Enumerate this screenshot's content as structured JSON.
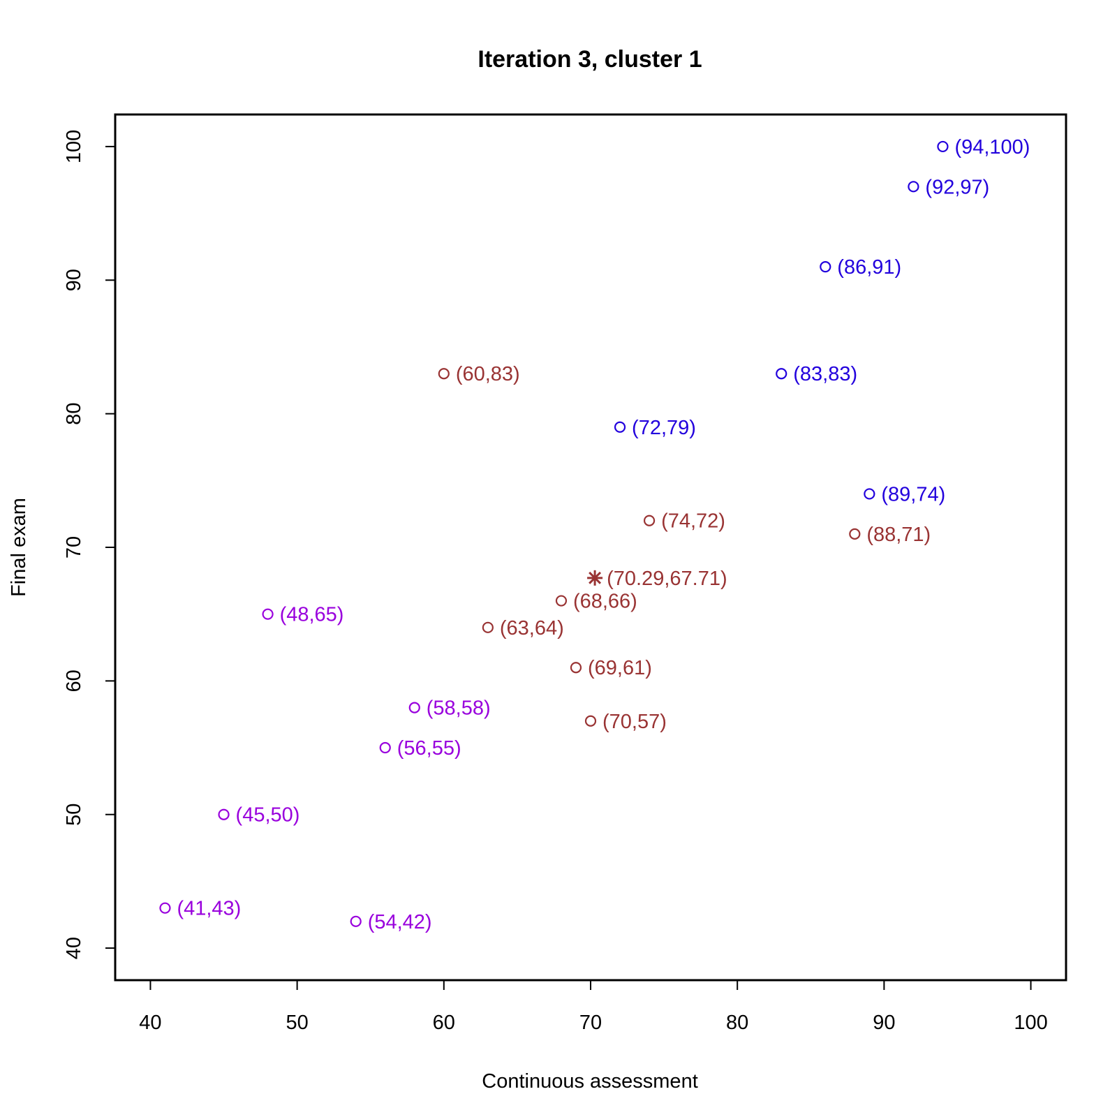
{
  "chart_data": {
    "type": "scatter",
    "title": "Iteration 3, cluster 1",
    "xlabel": "Continuous assessment",
    "ylabel": "Final exam",
    "xlim": [
      37.6,
      102.4
    ],
    "ylim": [
      37.6,
      102.4
    ],
    "xticks": [
      40,
      50,
      60,
      70,
      80,
      90,
      100
    ],
    "yticks": [
      40,
      50,
      60,
      70,
      80,
      90,
      100
    ],
    "grid": false,
    "colors": {
      "blue": "#2200dd",
      "brown": "#993333",
      "purple": "#9900dd"
    },
    "points": [
      {
        "x": 94,
        "y": 100,
        "label": "(94,100)",
        "color": "#2200dd",
        "marker": "circle"
      },
      {
        "x": 92,
        "y": 97,
        "label": "(92,97)",
        "color": "#2200dd",
        "marker": "circle"
      },
      {
        "x": 86,
        "y": 91,
        "label": "(86,91)",
        "color": "#2200dd",
        "marker": "circle"
      },
      {
        "x": 83,
        "y": 83,
        "label": "(83,83)",
        "color": "#2200dd",
        "marker": "circle"
      },
      {
        "x": 72,
        "y": 79,
        "label": "(72,79)",
        "color": "#2200dd",
        "marker": "circle"
      },
      {
        "x": 89,
        "y": 74,
        "label": "(89,74)",
        "color": "#2200dd",
        "marker": "circle"
      },
      {
        "x": 60,
        "y": 83,
        "label": "(60,83)",
        "color": "#993333",
        "marker": "circle"
      },
      {
        "x": 74,
        "y": 72,
        "label": "(74,72)",
        "color": "#993333",
        "marker": "circle"
      },
      {
        "x": 88,
        "y": 71,
        "label": "(88,71)",
        "color": "#993333",
        "marker": "circle"
      },
      {
        "x": 68,
        "y": 66,
        "label": "(68,66)",
        "color": "#993333",
        "marker": "circle"
      },
      {
        "x": 63,
        "y": 64,
        "label": "(63,64)",
        "color": "#993333",
        "marker": "circle"
      },
      {
        "x": 69,
        "y": 61,
        "label": "(69,61)",
        "color": "#993333",
        "marker": "circle"
      },
      {
        "x": 70,
        "y": 57,
        "label": "(70,57)",
        "color": "#993333",
        "marker": "circle"
      },
      {
        "x": 70.29,
        "y": 67.71,
        "label": "(70.29,67.71)",
        "color": "#993333",
        "marker": "asterisk"
      },
      {
        "x": 48,
        "y": 65,
        "label": "(48,65)",
        "color": "#9900dd",
        "marker": "circle"
      },
      {
        "x": 58,
        "y": 58,
        "label": "(58,58)",
        "color": "#9900dd",
        "marker": "circle"
      },
      {
        "x": 56,
        "y": 55,
        "label": "(56,55)",
        "color": "#9900dd",
        "marker": "circle"
      },
      {
        "x": 45,
        "y": 50,
        "label": "(45,50)",
        "color": "#9900dd",
        "marker": "circle"
      },
      {
        "x": 41,
        "y": 43,
        "label": "(41,43)",
        "color": "#9900dd",
        "marker": "circle"
      },
      {
        "x": 54,
        "y": 42,
        "label": "(54,42)",
        "color": "#9900dd",
        "marker": "circle"
      }
    ]
  }
}
